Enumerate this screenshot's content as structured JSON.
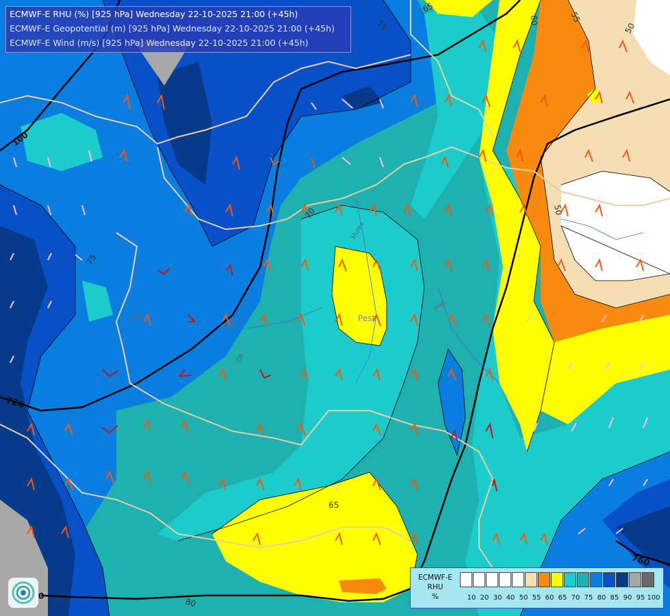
{
  "header": {
    "line1": "ECMWF-E RHU (%) [925 hPa] Wednesday 22-10-2025 21:00 (+45h)",
    "line2": "ECMWF-E Geopotential (m) [925 hPa] Wednesday 22-10-2025 21:00 (+45h)",
    "line3": "ECMWF-E Wind (m/s) [925 hPa] Wednesday 22-10-2025 21:00 (+45h)"
  },
  "legend": {
    "title_lines": [
      "ECMWF-E",
      "RHU",
      "%"
    ],
    "levels": [
      "10",
      "20",
      "30",
      "40",
      "50",
      "55",
      "60",
      "65",
      "70",
      "75",
      "80",
      "85",
      "90",
      "95",
      "100"
    ],
    "colors": [
      "#ffffff",
      "#ffffff",
      "#ffffff",
      "#ffffff",
      "#ffffff",
      "#f5deb3",
      "#f88a10",
      "#ffff00",
      "#1ccccc",
      "#1fb0b0",
      "#0a7ee0",
      "#0850c8",
      "#083a8c",
      "#a8a8a8",
      "#686868"
    ]
  },
  "contour_labels": [
    "65",
    "75",
    "60",
    "55",
    "50",
    "100",
    "70",
    "75",
    "50",
    "720",
    "760",
    "65",
    "80",
    "0"
  ],
  "place_labels": [
    "Pest",
    "Mures",
    "Mures",
    "Prut",
    "Siret",
    "Olt"
  ],
  "colors": {
    "rh_95": "#a8a8a8",
    "rh_90": "#083a8c",
    "rh_85": "#0850c8",
    "rh_80": "#0a7ee0",
    "rh_75": "#1fb0b0",
    "rh_70": "#1ccccc",
    "rh_65": "#ffff00",
    "rh_60": "#f88a10",
    "rh_55": "#f5deb3",
    "rh_50": "#ffffff"
  }
}
